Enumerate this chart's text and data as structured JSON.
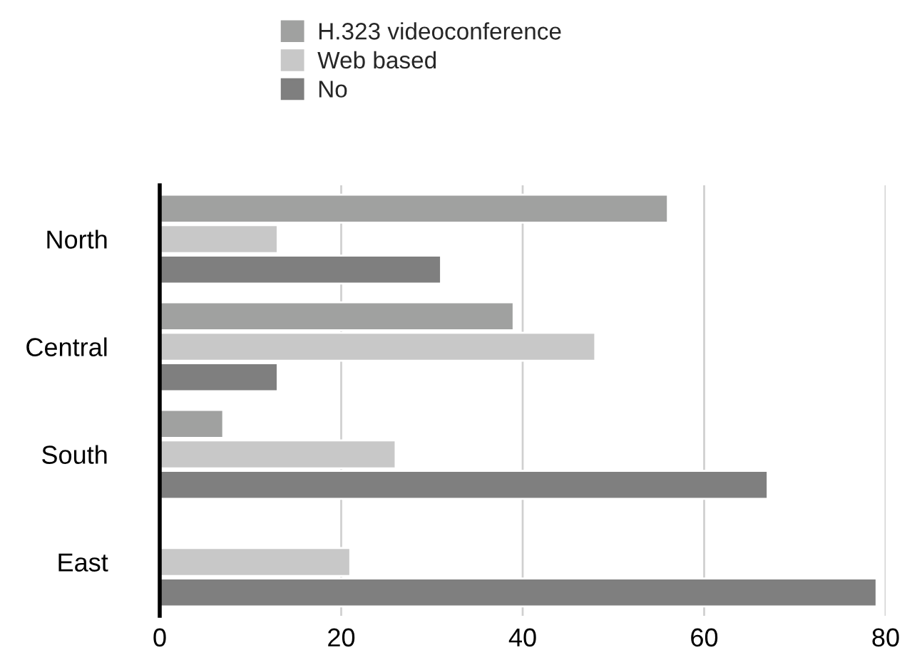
{
  "chart_data": {
    "type": "bar",
    "orientation": "horizontal",
    "categories": [
      "North",
      "Central",
      "South",
      "East"
    ],
    "series": [
      {
        "name": "H.323 videoconference",
        "color": "#a0a1a0",
        "values": [
          56,
          39,
          7,
          null
        ]
      },
      {
        "name": "Web based",
        "color": "#c8c8c8",
        "values": [
          13,
          48,
          26,
          21
        ]
      },
      {
        "name": "No",
        "color": "#7f7f7f",
        "values": [
          31,
          13,
          67,
          79
        ]
      }
    ],
    "xlim": [
      0,
      80
    ],
    "xticks": [
      0,
      20,
      40,
      60,
      80
    ],
    "grid": "x",
    "legend": "top"
  }
}
